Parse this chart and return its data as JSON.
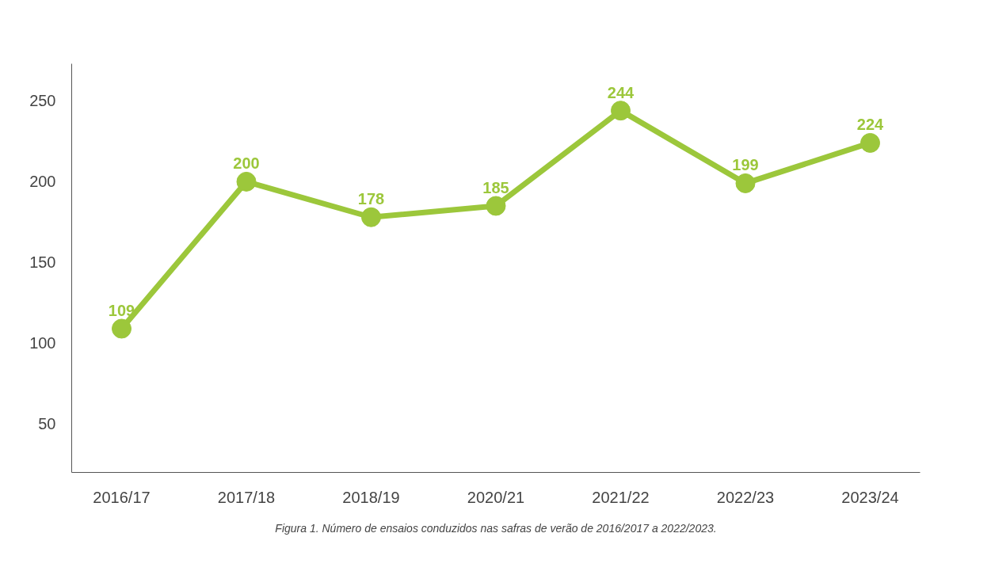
{
  "chart_data": {
    "type": "line",
    "categories": [
      "2016/17",
      "2017/18",
      "2018/19",
      "2020/21",
      "2021/22",
      "2022/23",
      "2023/24"
    ],
    "series": [
      {
        "color": "#9cc73b",
        "values": [
          109,
          200,
          178,
          185,
          244,
          199,
          224
        ]
      }
    ],
    "ylim": [
      20,
      273
    ],
    "yticks": [
      50,
      100,
      150,
      200,
      250
    ],
    "grid": false,
    "marker": "circle",
    "line_style": "solid",
    "data_labels": true,
    "annotations": [
      "Figura 1. Número de ensaios conduzidos nas safras de verão de 2016/2017 a 2022/2023."
    ]
  }
}
